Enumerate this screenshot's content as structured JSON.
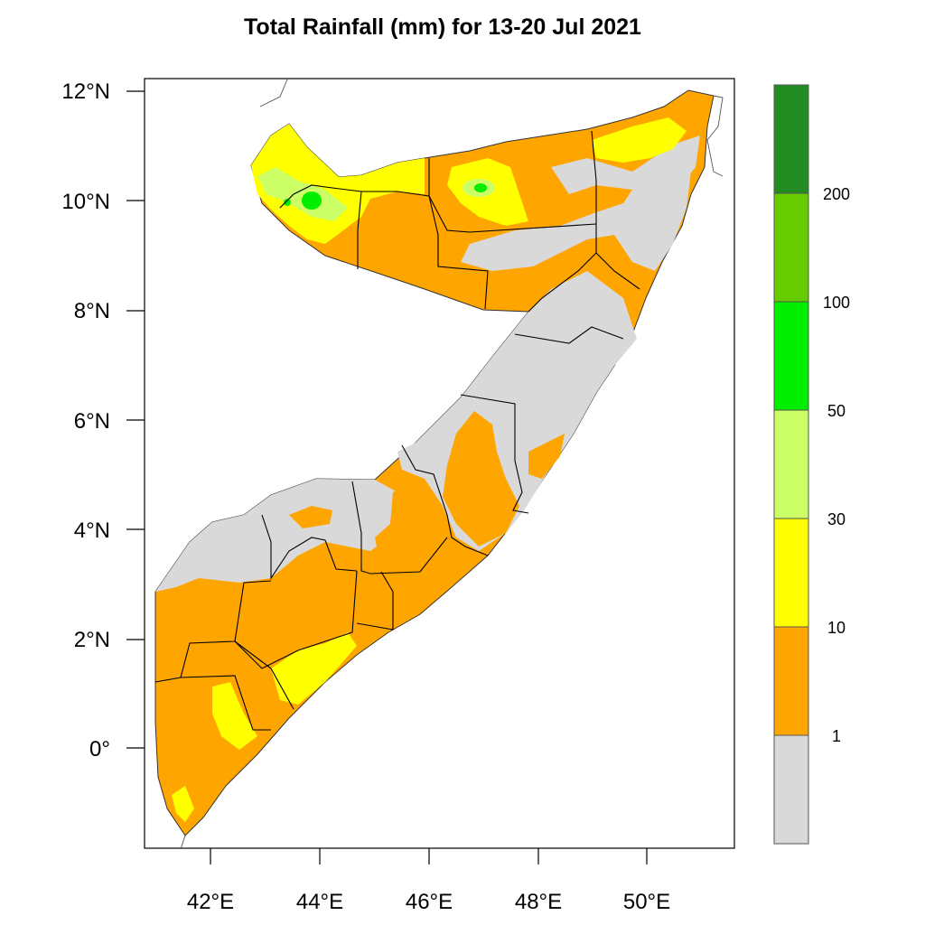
{
  "title": "Total Rainfall (mm) for 13-20 Jul 2021",
  "lat_labels": [
    "12°N",
    "10°N",
    "8°N",
    "6°N",
    "4°N",
    "2°N",
    "0°"
  ],
  "lon_labels": [
    "42°E",
    "44°E",
    "46°E",
    "48°E",
    "50°E"
  ],
  "legend": {
    "levels": [
      "1",
      "10",
      "30",
      "50",
      "100",
      "200"
    ],
    "bin_colors": [
      "#d9d9d9",
      "#ffa500",
      "#ffff00",
      "#ccff66",
      "#00ee00",
      "#66cc00",
      "#228b22"
    ]
  },
  "colors": {
    "no_data": "#ffffff",
    "boundary": "#000000"
  }
}
